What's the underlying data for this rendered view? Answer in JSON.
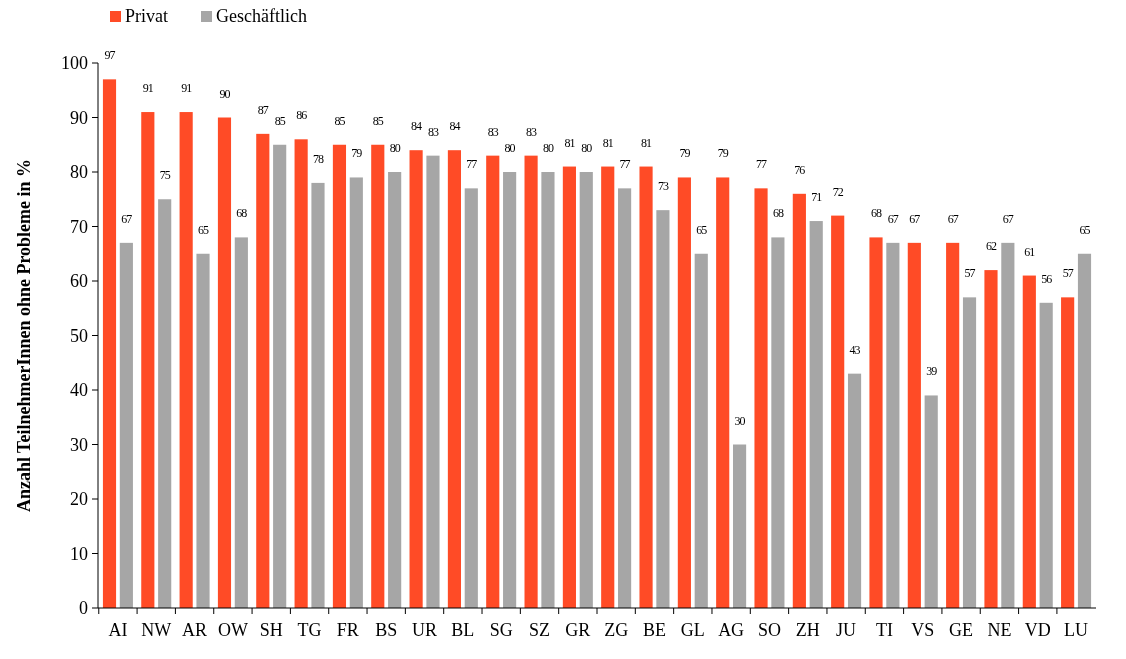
{
  "chart_data": {
    "type": "bar",
    "ylabel": "Anzahl TeilnehmerInnen ohne Probleme in %",
    "categories": [
      "AI",
      "NW",
      "AR",
      "OW",
      "SH",
      "TG",
      "FR",
      "BS",
      "UR",
      "BL",
      "SG",
      "SZ",
      "GR",
      "ZG",
      "BE",
      "GL",
      "AG",
      "SO",
      "ZH",
      "JU",
      "TI",
      "VS",
      "GE",
      "NE",
      "VD",
      "LU"
    ],
    "series": [
      {
        "name": "Privat",
        "color": "#ff4b26",
        "values": [
          97,
          91,
          91,
          90,
          87,
          86,
          85,
          85,
          84,
          84,
          83,
          83,
          81,
          81,
          81,
          79,
          79,
          77,
          76,
          72,
          68,
          67,
          67,
          62,
          61,
          57
        ]
      },
      {
        "name": "Geschäftlich",
        "color": "#a6a6a6",
        "values": [
          67,
          75,
          65,
          68,
          85,
          78,
          79,
          80,
          83,
          77,
          80,
          80,
          80,
          77,
          73,
          65,
          30,
          68,
          71,
          43,
          67,
          39,
          57,
          67,
          56,
          65
        ]
      }
    ],
    "ylim": [
      0,
      100
    ],
    "yticks": [
      0,
      10,
      20,
      30,
      40,
      50,
      60,
      70,
      80,
      90,
      100
    ],
    "data_labels": true,
    "legend": "top left",
    "grid": false
  }
}
